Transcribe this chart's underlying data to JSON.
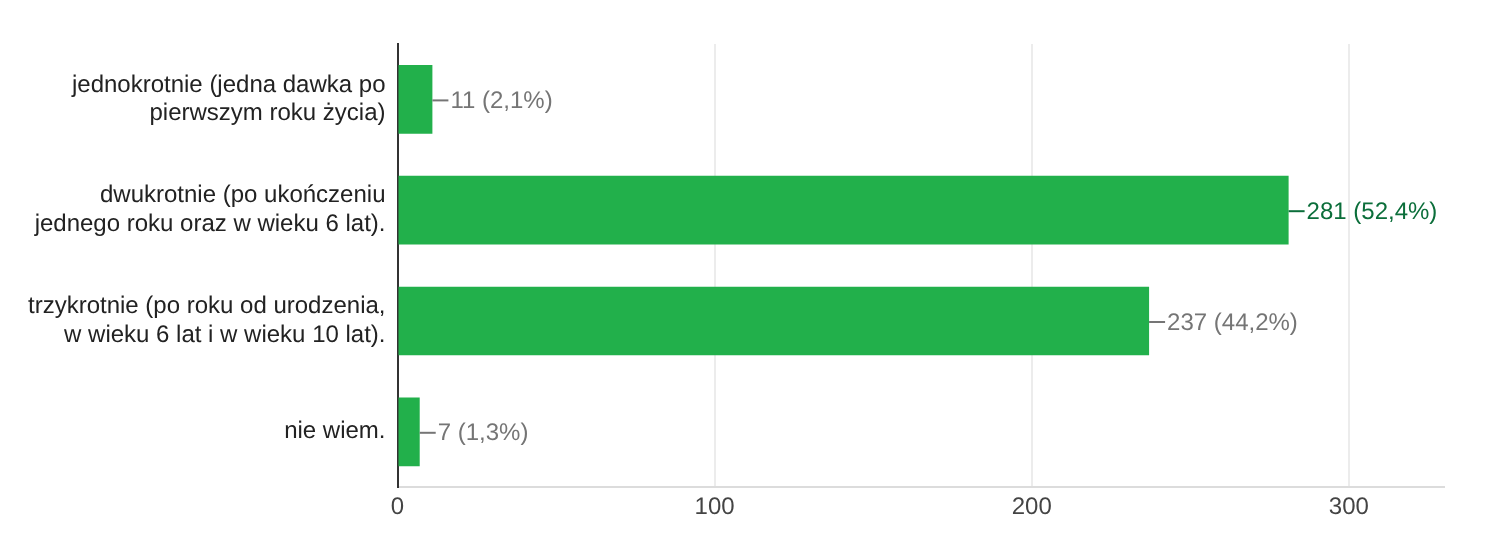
{
  "chart_data": {
    "type": "bar",
    "orientation": "horizontal",
    "categories": [
      "jednokrotnie (jedna dawka po pierwszym roku życia)",
      "dwukrotnie (po ukończeniu jednego roku oraz w wieku 6 lat).",
      "trzykrotnie (po roku od urodzenia, w wieku 6 lat i w wieku 10 lat).",
      "nie wiem."
    ],
    "values": [
      11,
      281,
      237,
      7
    ],
    "value_labels": [
      "11 (2,1%)",
      "281 (52,4%)",
      "237 (44,2%)",
      "7 (1,3%)"
    ],
    "color": "#22b04b",
    "xlim": [
      0,
      330
    ],
    "xticks": [
      0,
      100,
      200,
      300
    ],
    "grid": "x",
    "legend": false
  }
}
